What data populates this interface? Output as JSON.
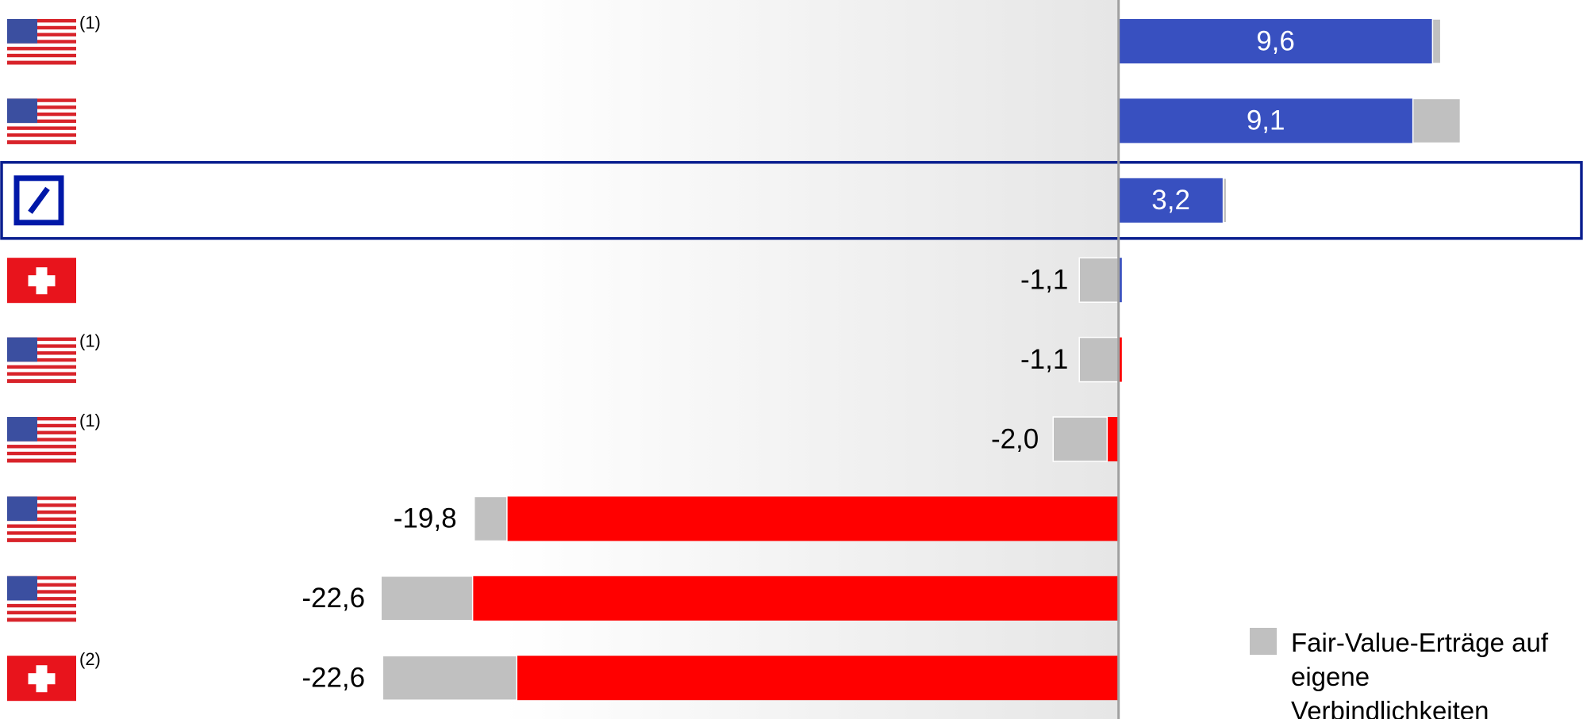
{
  "chart_data": {
    "type": "bar",
    "orientation": "horizontal",
    "categories": [
      null,
      null,
      null,
      null,
      null,
      null,
      null,
      null,
      null
    ],
    "footnotes": [
      "(1)",
      null,
      null,
      null,
      "(1)",
      "(1)",
      null,
      null,
      "(2)"
    ],
    "values": [
      9.6,
      9.0,
      3.2,
      0.1,
      0.1,
      -0.35,
      -18.7,
      -19.75,
      -18.4
    ],
    "colors": [
      "#3850c0",
      "#3850c0",
      "#3850c0",
      "#3850c0",
      "#ff0000",
      "#ff0000",
      "#ff0000",
      "#ff0000",
      "#ff0000"
    ],
    "series": [
      {
        "name": "Fair-Value-Erträge auf eigene Verbindlichkeiten",
        "color": "#c0c0c0",
        "values": [
          0.25,
          1.45,
          0.1,
          -1.2,
          -1.2,
          -1.65,
          -1.0,
          -2.8,
          -4.1
        ]
      }
    ],
    "totals": {
      "values": [
        9.6,
        9.1,
        3.2,
        -1.1,
        -1.1,
        -2.0,
        -19.8,
        -22.6,
        -22.6
      ],
      "value_labels": [
        "9,6",
        "9,1",
        "3,2",
        "-1,1",
        "-1,1",
        "-2,0",
        "-19,8",
        "-22,6",
        "-22,6"
      ]
    },
    "highlight": 2,
    "xlim": [
      -34.2,
      14.2
    ]
  }
}
